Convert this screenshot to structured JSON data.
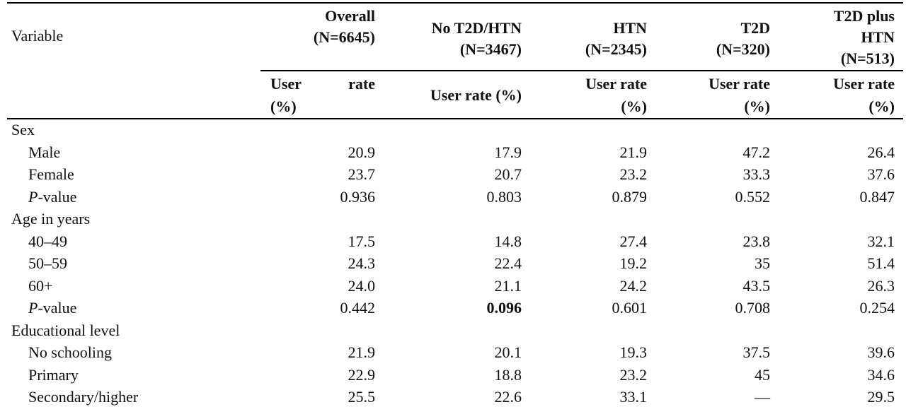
{
  "header": {
    "variable": "Variable",
    "groups": [
      {
        "line1": "Overall",
        "line2": "(N=6645)"
      },
      {
        "line1": "No T2D/HTN",
        "line2": "(N=3467)"
      },
      {
        "line1": "HTN",
        "line2": "(N=2345)"
      },
      {
        "line1": "T2D",
        "line2": "(N=320)"
      },
      {
        "line1": "T2D plus",
        "line2": "HTN",
        "line3": "(N=513)"
      }
    ],
    "sub": {
      "overall": {
        "w1": "User",
        "w2": "rate",
        "w3": "(%)"
      },
      "no_t2d": "User rate (%)",
      "htn": {
        "l1": "User rate",
        "l2": "(%)"
      },
      "t2d": {
        "l1": "User rate",
        "l2": "(%)"
      },
      "both": {
        "l1": "User rate",
        "l2": "(%)"
      }
    }
  },
  "rows": [
    {
      "label": "Sex",
      "type": "section"
    },
    {
      "label": "Male",
      "values": [
        "20.9",
        "17.9",
        "21.9",
        "47.2",
        "26.4"
      ]
    },
    {
      "label": "Female",
      "values": [
        "23.7",
        "20.7",
        "23.2",
        "33.3",
        "37.6"
      ]
    },
    {
      "label_italic": "P",
      "label": "-value",
      "type": "pvalue",
      "values": [
        "0.936",
        "0.803",
        "0.879",
        "0.552",
        "0.847"
      ]
    },
    {
      "label": "Age in years",
      "type": "section"
    },
    {
      "label": "40–49",
      "values": [
        "17.5",
        "14.8",
        "27.4",
        "23.8",
        "32.1"
      ]
    },
    {
      "label": "50–59",
      "values": [
        "24.3",
        "22.4",
        "19.2",
        "35",
        "51.4"
      ]
    },
    {
      "label": "60+",
      "values": [
        "24.0",
        "21.1",
        "24.2",
        "43.5",
        "26.3"
      ]
    },
    {
      "label_italic": "P",
      "label": "-value",
      "type": "pvalue",
      "values": [
        "0.442",
        "0.096",
        "0.601",
        "0.708",
        "0.254"
      ],
      "bold_index": 1
    },
    {
      "label": "Educational level",
      "type": "section"
    },
    {
      "label": "No schooling",
      "values": [
        "21.9",
        "20.1",
        "19.3",
        "37.5",
        "39.6"
      ]
    },
    {
      "label": "Primary",
      "values": [
        "22.9",
        "18.8",
        "23.2",
        "45",
        "34.6"
      ]
    },
    {
      "label": "Secondary/higher",
      "values": [
        "25.5",
        "22.6",
        "33.1",
        "—",
        "29.5"
      ]
    }
  ]
}
